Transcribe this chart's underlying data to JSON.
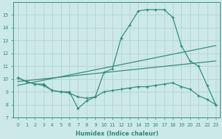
{
  "title": "",
  "xlabel": "Humidex (Indice chaleur)",
  "bg_color": "#cce8e8",
  "grid_color": "#aacfcf",
  "line_color": "#2e8b7a",
  "xlim": [
    -0.5,
    23.5
  ],
  "ylim": [
    7,
    16
  ],
  "yticks": [
    7,
    8,
    9,
    10,
    11,
    12,
    13,
    14,
    15
  ],
  "xticks": [
    0,
    1,
    2,
    3,
    4,
    5,
    6,
    7,
    8,
    9,
    10,
    11,
    12,
    13,
    14,
    15,
    16,
    17,
    18,
    19,
    20,
    21,
    22,
    23
  ],
  "line_max": {
    "x": [
      0,
      1,
      2,
      3,
      4,
      5,
      6,
      7,
      8,
      9,
      10,
      11,
      12,
      13,
      14,
      15,
      16,
      17,
      18,
      19,
      20,
      21,
      22,
      23
    ],
    "y": [
      10.1,
      9.8,
      9.6,
      9.6,
      9.1,
      9.0,
      9.0,
      7.7,
      8.3,
      8.6,
      10.5,
      10.8,
      13.2,
      14.2,
      15.3,
      15.4,
      15.4,
      15.4,
      14.8,
      12.6,
      11.4,
      11.0,
      9.5,
      8.0
    ]
  },
  "line_trend": {
    "x": [
      0,
      23
    ],
    "y": [
      9.5,
      12.6
    ]
  },
  "line_trend2": {
    "x": [
      0,
      23
    ],
    "y": [
      9.8,
      11.4
    ]
  },
  "line_min": {
    "x": [
      0,
      1,
      2,
      3,
      4,
      5,
      6,
      7,
      8,
      9,
      10,
      11,
      12,
      13,
      14,
      15,
      16,
      17,
      18,
      19,
      20,
      21,
      22,
      23
    ],
    "y": [
      10.1,
      9.8,
      9.6,
      9.5,
      9.1,
      9.0,
      8.9,
      8.6,
      8.5,
      8.6,
      9.0,
      9.1,
      9.2,
      9.3,
      9.4,
      9.4,
      9.5,
      9.6,
      9.7,
      9.4,
      9.2,
      8.7,
      8.4,
      8.0
    ]
  }
}
